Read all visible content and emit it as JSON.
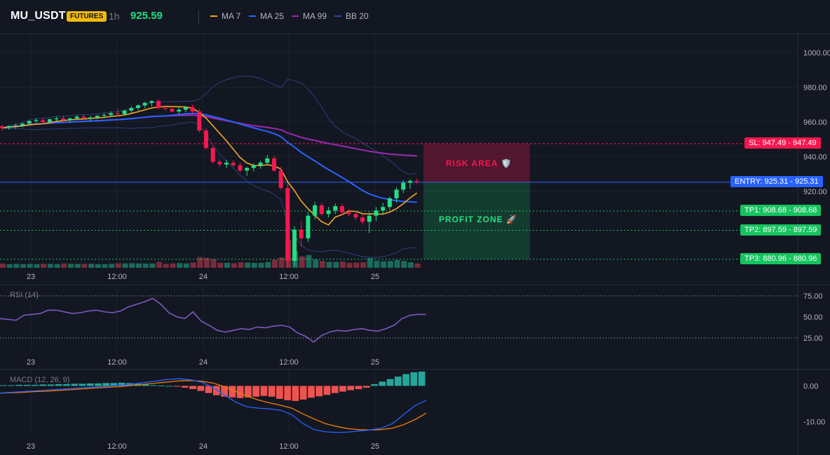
{
  "header": {
    "symbol": "MU_USDT",
    "badge": "FUTURES",
    "timeframe": "1h",
    "price": "925.59",
    "legend": [
      {
        "label": "MA 7",
        "color": "#f5a623"
      },
      {
        "label": "MA 25",
        "color": "#2962ff"
      },
      {
        "label": "MA 99",
        "color": "#9c27b0"
      },
      {
        "label": "BB 20",
        "color": "#2b4a9a"
      }
    ]
  },
  "colors": {
    "up": "#26de81",
    "down": "#f7174e",
    "vol_up": "#1a6b5c",
    "vol_down": "#7a2b3a",
    "bb": "#2b3f7a"
  },
  "levels": {
    "sl": {
      "label": "SL: 947.49 - 947.49",
      "value": 947.49,
      "color": "#f7174e"
    },
    "entry": {
      "label": "ENTRY: 925.31 - 925.31",
      "value": 925.31,
      "color": "#2962ff"
    },
    "tp1": {
      "label": "TP1: 908.68 - 908.68",
      "value": 908.68,
      "color": "#16c45f"
    },
    "tp2": {
      "label": "TP2: 897.59 - 897.59",
      "value": 897.59,
      "color": "#16c45f"
    },
    "tp3": {
      "label": "TP3: 880.96 - 880.96",
      "value": 880.96,
      "color": "#16c45f"
    }
  },
  "zones": {
    "risk": "RISK AREA 🛡️",
    "profit": "PROFIT ZONE 🚀"
  },
  "x_ticks": [
    "23",
    "12:00",
    "24",
    "12:00",
    "25"
  ],
  "rsi_title": "RSI (14)",
  "macd_title": "MACD (12, 26, 9)",
  "chart_data": [
    {
      "type": "candlestick",
      "title": "MU_USDT 1h",
      "y_ticks": [
        "1000.00",
        "980.00",
        "960.00",
        "940.00",
        "920.00"
      ],
      "ylim": [
        876,
        1010
      ],
      "candles": [
        [
          957.5,
          958.5,
          955.0,
          956.5
        ],
        [
          956.5,
          958.0,
          955.5,
          957.5
        ],
        [
          957.5,
          959.0,
          956.0,
          958.0
        ],
        [
          958.0,
          959.5,
          957.0,
          959.0
        ],
        [
          959.0,
          961.0,
          958.0,
          960.5
        ],
        [
          960.5,
          962.0,
          959.5,
          961.0
        ],
        [
          961.0,
          962.5,
          959.5,
          960.0
        ],
        [
          960.0,
          962.0,
          959.0,
          961.5
        ],
        [
          961.5,
          963.0,
          960.5,
          962.0
        ],
        [
          962.0,
          963.5,
          960.0,
          961.0
        ],
        [
          961.0,
          962.5,
          959.5,
          962.0
        ],
        [
          962.0,
          964.0,
          961.0,
          963.0
        ],
        [
          963.0,
          964.5,
          961.5,
          962.0
        ],
        [
          962.0,
          963.5,
          960.5,
          962.5
        ],
        [
          962.5,
          964.0,
          961.5,
          963.5
        ],
        [
          963.5,
          965.0,
          962.5,
          964.0
        ],
        [
          964.0,
          966.0,
          963.0,
          965.0
        ],
        [
          965.0,
          967.5,
          963.5,
          964.5
        ],
        [
          964.5,
          967.0,
          963.5,
          966.5
        ],
        [
          966.5,
          969.0,
          965.0,
          968.0
        ],
        [
          968.0,
          970.0,
          966.5,
          969.5
        ],
        [
          969.5,
          971.5,
          968.0,
          971.0
        ],
        [
          971.0,
          972.5,
          969.0,
          972.0
        ],
        [
          972.0,
          973.0,
          967.0,
          968.0
        ],
        [
          968.0,
          969.5,
          966.5,
          967.5
        ],
        [
          967.5,
          969.0,
          965.5,
          966.0
        ],
        [
          966.0,
          968.5,
          964.5,
          967.0
        ],
        [
          967.0,
          969.0,
          965.5,
          968.5
        ],
        [
          968.5,
          970.0,
          965.0,
          966.0
        ],
        [
          966.0,
          967.5,
          954.0,
          955.0
        ],
        [
          955.0,
          956.5,
          944.0,
          945.0
        ],
        [
          945.0,
          946.5,
          936.0,
          937.0
        ],
        [
          937.0,
          938.5,
          934.0,
          935.5
        ],
        [
          935.5,
          938.0,
          933.5,
          936.5
        ],
        [
          936.5,
          938.0,
          934.0,
          935.0
        ],
        [
          935.0,
          936.5,
          931.0,
          932.0
        ],
        [
          932.0,
          934.0,
          929.0,
          933.5
        ],
        [
          933.5,
          936.0,
          931.5,
          935.0
        ],
        [
          935.0,
          937.5,
          933.0,
          936.5
        ],
        [
          936.5,
          941.0,
          935.0,
          939.0
        ],
        [
          939.0,
          940.5,
          931.0,
          932.0
        ],
        [
          932.0,
          934.0,
          921.0,
          922.0
        ],
        [
          922.0,
          925.0,
          876.0,
          880.0
        ],
        [
          880.0,
          900.0,
          877.0,
          898.0
        ],
        [
          898.0,
          903.0,
          888.0,
          893.0
        ],
        [
          893.0,
          908.0,
          891.0,
          906.0
        ],
        [
          906.0,
          914.0,
          904.0,
          912.0
        ],
        [
          912.0,
          913.5,
          906.0,
          907.0
        ],
        [
          907.0,
          911.0,
          905.0,
          909.0
        ],
        [
          909.0,
          913.0,
          907.0,
          911.5
        ],
        [
          911.5,
          913.0,
          906.5,
          908.0
        ],
        [
          908.0,
          910.0,
          905.5,
          907.0
        ],
        [
          907.0,
          908.5,
          903.5,
          905.0
        ],
        [
          905.0,
          906.5,
          901.0,
          902.5
        ],
        [
          902.5,
          908.0,
          896.0,
          906.0
        ],
        [
          906.0,
          911.0,
          903.0,
          909.0
        ],
        [
          909.0,
          913.5,
          906.5,
          911.0
        ],
        [
          911.0,
          917.0,
          909.5,
          916.0
        ],
        [
          916.0,
          922.5,
          913.5,
          921.0
        ],
        [
          921.0,
          926.5,
          919.0,
          925.0
        ],
        [
          925.0,
          927.0,
          921.5,
          926.0
        ],
        [
          926.0,
          927.5,
          924.0,
          925.6
        ]
      ]
    },
    {
      "type": "line",
      "title": "RSI (14)",
      "y_ticks": [
        "75.00",
        "50.00",
        "25.00"
      ],
      "ylim": [
        10,
        85
      ],
      "values": [
        48,
        47,
        46,
        52,
        53,
        54,
        58,
        58,
        56,
        54,
        55,
        57,
        58,
        56,
        55,
        57,
        62,
        65,
        68,
        72,
        65,
        55,
        50,
        48,
        56,
        45,
        40,
        34,
        32,
        34,
        36,
        35,
        38,
        37,
        39,
        40,
        38,
        31,
        27,
        20,
        28,
        32,
        34,
        33,
        35,
        36,
        34,
        33,
        36,
        40,
        48,
        52,
        53,
        53
      ]
    },
    {
      "type": "line",
      "title": "MACD (12, 26, 9)",
      "y_ticks": [
        "0.00",
        "-10.00"
      ],
      "ylim": [
        -14,
        4
      ],
      "series": [
        {
          "values": [
            -2.0,
            -1.8,
            -1.6,
            -1.4,
            -1.2,
            -1.0,
            -0.8,
            -0.6,
            -0.4,
            -0.2,
            0.0,
            0.3,
            0.6,
            1.0,
            1.4,
            1.8,
            2.0,
            1.7,
            1.0,
            -0.5,
            -2.5,
            -4.5,
            -5.8,
            -6.2,
            -6.4,
            -6.8,
            -8.0,
            -10.5,
            -12.2,
            -12.8,
            -13.0,
            -12.9,
            -12.6,
            -12.3,
            -11.8,
            -10.5,
            -8.0,
            -5.5,
            -4.0
          ]
        },
        {
          "values": [
            -2.0,
            -1.9,
            -1.8,
            -1.6,
            -1.5,
            -1.3,
            -1.1,
            -0.9,
            -0.7,
            -0.5,
            -0.3,
            -0.1,
            0.2,
            0.5,
            0.8,
            1.1,
            1.4,
            1.5,
            1.3,
            0.8,
            -0.2,
            -1.5,
            -2.8,
            -3.9,
            -4.7,
            -5.4,
            -6.2,
            -7.8,
            -9.2,
            -10.5,
            -11.3,
            -11.9,
            -12.2,
            -12.3,
            -12.2,
            -11.8,
            -10.8,
            -9.4,
            -7.6
          ]
        }
      ],
      "histogram": [
        0.2,
        0.2,
        0.3,
        0.3,
        0.3,
        0.4,
        0.4,
        0.5,
        0.5,
        0.6,
        0.6,
        0.7,
        0.7,
        0.8,
        0.8,
        0.9,
        0.8,
        0.6,
        0.4,
        0.2,
        0.1,
        0,
        -0.2,
        -0.5,
        -0.9,
        -1.4,
        -2.0,
        -2.6,
        -3.0,
        -3.2,
        -3.4,
        -3.2,
        -3.0,
        -2.8,
        -3.0,
        -3.6,
        -4.0,
        -4.2,
        -3.8,
        -3.3,
        -2.9,
        -2.5,
        -2.0,
        -1.6,
        -1.2,
        -0.9,
        -0.5,
        0.5,
        1.2,
        1.9,
        2.6,
        3.3,
        3.8,
        4.0
      ]
    }
  ]
}
